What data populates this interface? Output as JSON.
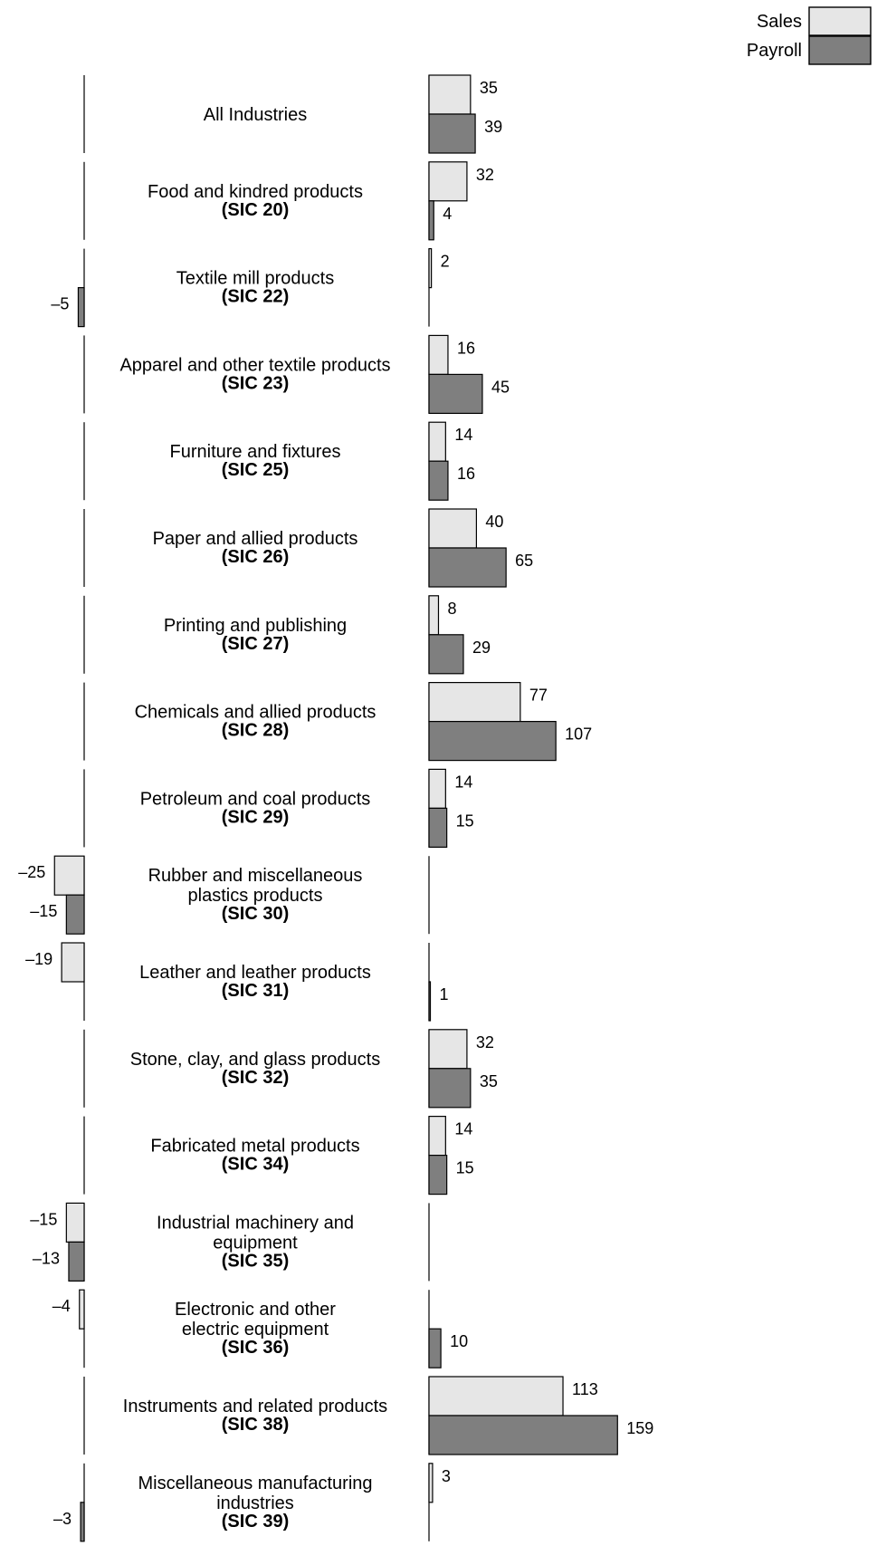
{
  "chart_data": {
    "type": "bar",
    "orientation": "horizontal",
    "legend_position": "top-right",
    "grid": false,
    "series": [
      {
        "name": "Sales",
        "color": "#e6e6e6",
        "values": [
          35,
          32,
          2,
          16,
          14,
          40,
          8,
          77,
          14,
          -25,
          -19,
          32,
          14,
          -15,
          -4,
          113,
          3
        ]
      },
      {
        "name": "Payroll",
        "color": "#7f7f7f",
        "values": [
          39,
          4,
          -5,
          45,
          16,
          65,
          29,
          107,
          15,
          -15,
          1,
          35,
          15,
          -13,
          10,
          159,
          -3
        ]
      }
    ],
    "value_labels": {
      "Sales": [
        "35",
        "32",
        "2",
        "16",
        "14",
        "40",
        "8",
        "77",
        "14",
        "–25",
        "–19",
        "32",
        "14",
        "–15",
        "–4",
        "113",
        "3"
      ],
      "Payroll": [
        "39",
        "4",
        "–5",
        "45",
        "16",
        "65",
        "29",
        "107",
        "15",
        "–15",
        "1",
        "35",
        "15",
        "–13",
        "10",
        "159",
        "–3"
      ]
    },
    "categories": [
      {
        "name": [
          "All Industries"
        ],
        "sic": ""
      },
      {
        "name": [
          "Food and kindred products"
        ],
        "sic": "(SIC  20)"
      },
      {
        "name": [
          "Textile mill products"
        ],
        "sic": "(SIC 22)"
      },
      {
        "name": [
          "Apparel and other textile products"
        ],
        "sic": "(SIC 23)"
      },
      {
        "name": [
          "Furniture and fixtures"
        ],
        "sic": "(SIC 25)"
      },
      {
        "name": [
          "Paper and allied products"
        ],
        "sic": "(SIC 26)"
      },
      {
        "name": [
          "Printing and publishing"
        ],
        "sic": "(SIC 27)"
      },
      {
        "name": [
          "Chemicals and allied products"
        ],
        "sic": "(SIC 28)"
      },
      {
        "name": [
          "Petroleum and coal products"
        ],
        "sic": "(SIC 29)"
      },
      {
        "name": [
          "Rubber and miscellaneous",
          "plastics products"
        ],
        "sic": "(SIC 30)"
      },
      {
        "name": [
          "Leather and leather products"
        ],
        "sic": "(SIC 31)"
      },
      {
        "name": [
          "Stone, clay, and glass products"
        ],
        "sic": "(SIC 32)"
      },
      {
        "name": [
          "Fabricated metal products"
        ],
        "sic": "(SIC 34)"
      },
      {
        "name": [
          "Industrial machinery and",
          "equipment"
        ],
        "sic": "(SIC 35)"
      },
      {
        "name": [
          "Electronic and other",
          "electric equipment"
        ],
        "sic": "(SIC 36)"
      },
      {
        "name": [
          "Instruments and related products"
        ],
        "sic": "(SIC 38)"
      },
      {
        "name": [
          "Miscellaneous manufacturing",
          "industries"
        ],
        "sic": "(SIC 39)"
      }
    ]
  }
}
